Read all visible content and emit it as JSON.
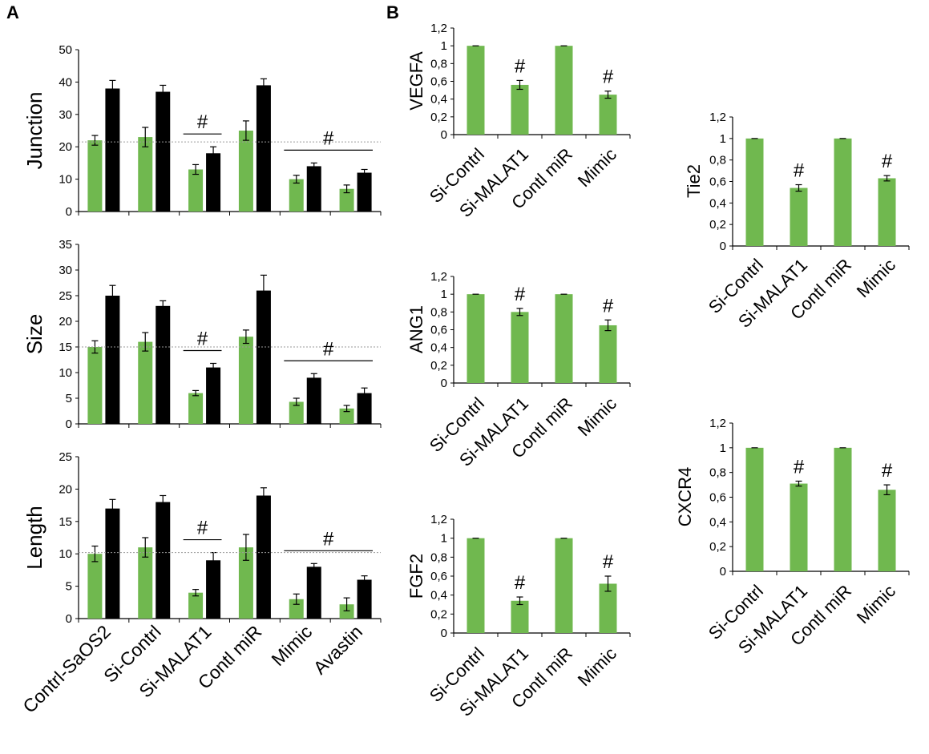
{
  "panels": {
    "a": "A",
    "b": "B"
  },
  "colors": {
    "green": "#70b84f",
    "black": "#000000",
    "refline": "#9a9a9a"
  },
  "chart_data": [
    {
      "id": "junction",
      "panel": "A",
      "type": "bar",
      "ylabel": "Junction",
      "ylim": [
        0,
        50
      ],
      "yticks": [
        0,
        10,
        20,
        30,
        40,
        50
      ],
      "categories": [
        "Contrl-SaOS2",
        "Si-Contrl",
        "Si-MALAT1",
        "Contl miR",
        "Mimic",
        "Avastin"
      ],
      "series": [
        {
          "name": "green",
          "values": [
            22,
            23,
            13,
            25,
            10,
            7
          ],
          "errors": [
            1.5,
            3,
            1.5,
            3,
            1.2,
            1.2
          ]
        },
        {
          "name": "black",
          "values": [
            38,
            37,
            18,
            39,
            14,
            12
          ],
          "errors": [
            2.5,
            2,
            2,
            2,
            1,
            1
          ]
        }
      ],
      "reference_line": 21.5,
      "annotations": [
        {
          "text": "#",
          "from": 2,
          "to": 2
        },
        {
          "text": "#",
          "from": 4,
          "to": 5
        }
      ]
    },
    {
      "id": "size",
      "panel": "A",
      "type": "bar",
      "ylabel": "Size",
      "ylim": [
        0,
        35
      ],
      "yticks": [
        0,
        5,
        10,
        15,
        20,
        25,
        30,
        35
      ],
      "categories": [
        "Contrl-SaOS2",
        "Si-Contrl",
        "Si-MALAT1",
        "Contl miR",
        "Mimic",
        "Avastin"
      ],
      "series": [
        {
          "name": "green",
          "values": [
            15,
            16,
            6,
            17,
            4.3,
            3
          ],
          "errors": [
            1.2,
            1.8,
            0.5,
            1.3,
            0.7,
            0.6
          ]
        },
        {
          "name": "black",
          "values": [
            25,
            23,
            11,
            26,
            9,
            6
          ],
          "errors": [
            2,
            1,
            0.8,
            3,
            0.8,
            1
          ]
        }
      ],
      "reference_line": 15,
      "annotations": [
        {
          "text": "#",
          "from": 2,
          "to": 2
        },
        {
          "text": "#",
          "from": 4,
          "to": 5
        }
      ]
    },
    {
      "id": "length",
      "panel": "A",
      "type": "bar",
      "ylabel": "Length",
      "ylim": [
        0,
        25
      ],
      "yticks": [
        0,
        5,
        10,
        15,
        20,
        25
      ],
      "categories": [
        "Contrl-SaOS2",
        "Si-Contrl",
        "Si-MALAT1",
        "Contl miR",
        "Mimic",
        "Avastin"
      ],
      "series": [
        {
          "name": "green",
          "values": [
            10,
            11,
            4,
            11,
            3,
            2.2
          ],
          "errors": [
            1.2,
            1.5,
            0.5,
            2,
            0.8,
            1
          ]
        },
        {
          "name": "black",
          "values": [
            17,
            18,
            9,
            19,
            8,
            6
          ],
          "errors": [
            1.4,
            1,
            1.2,
            1.2,
            0.5,
            0.6
          ]
        }
      ],
      "reference_line": 10.2,
      "annotations": [
        {
          "text": "#",
          "from": 2,
          "to": 2
        },
        {
          "text": "#",
          "from": 4,
          "to": 5
        }
      ]
    },
    {
      "id": "vegfa",
      "panel": "B",
      "type": "bar",
      "ylabel": "VEGFA",
      "ylim": [
        0,
        1.2
      ],
      "yticks": [
        "0",
        "0,2",
        "0,4",
        "0,6",
        "0,8",
        "1",
        "1,2"
      ],
      "categories": [
        "Si-Contrl",
        "Si-MALAT1",
        "Contl miR",
        "Mimic"
      ],
      "series": [
        {
          "name": "green",
          "values": [
            1,
            0.56,
            1,
            0.45
          ],
          "errors": [
            0,
            0.05,
            0,
            0.04
          ]
        }
      ],
      "annotations": [
        {
          "text": "#",
          "index": 1
        },
        {
          "text": "#",
          "index": 3
        }
      ]
    },
    {
      "id": "tie2",
      "panel": "B",
      "type": "bar",
      "ylabel": "Tie2",
      "ylim": [
        0,
        1.2
      ],
      "yticks": [
        "0",
        "0,2",
        "0,4",
        "0,6",
        "0,8",
        "1",
        "1,2"
      ],
      "categories": [
        "Si-Contrl",
        "Si-MALAT1",
        "Contl miR",
        "Mimic"
      ],
      "series": [
        {
          "name": "green",
          "values": [
            1,
            0.54,
            1,
            0.63
          ],
          "errors": [
            0,
            0.03,
            0,
            0.025
          ]
        }
      ],
      "annotations": [
        {
          "text": "#",
          "index": 1
        },
        {
          "text": "#",
          "index": 3
        }
      ]
    },
    {
      "id": "ang1",
      "panel": "B",
      "type": "bar",
      "ylabel": "ANG1",
      "ylim": [
        0,
        1.2
      ],
      "yticks": [
        "0",
        "0,2",
        "0,4",
        "0,6",
        "0,8",
        "1",
        "1,2"
      ],
      "categories": [
        "Si-Contrl",
        "Si-MALAT1",
        "Contl miR",
        "Mimic"
      ],
      "series": [
        {
          "name": "green",
          "values": [
            1,
            0.8,
            1,
            0.65
          ],
          "errors": [
            0,
            0.04,
            0,
            0.06
          ]
        }
      ],
      "annotations": [
        {
          "text": "#",
          "index": 1
        },
        {
          "text": "#",
          "index": 3
        }
      ]
    },
    {
      "id": "cxcr4",
      "panel": "B",
      "type": "bar",
      "ylabel": "CXCR4",
      "ylim": [
        0,
        1.2
      ],
      "yticks": [
        "0",
        "0,2",
        "0,4",
        "0,6",
        "0,8",
        "1",
        "1,2"
      ],
      "categories": [
        "Si-Contrl",
        "Si-MALAT1",
        "Contl miR",
        "Mimic"
      ],
      "series": [
        {
          "name": "green",
          "values": [
            1,
            0.71,
            1,
            0.66
          ],
          "errors": [
            0,
            0.02,
            0,
            0.04
          ]
        }
      ],
      "annotations": [
        {
          "text": "#",
          "index": 1
        },
        {
          "text": "#",
          "index": 3
        }
      ]
    },
    {
      "id": "fgf2",
      "panel": "B",
      "type": "bar",
      "ylabel": "FGF2",
      "ylim": [
        0,
        1.2
      ],
      "yticks": [
        "0",
        "0,2",
        "0,4",
        "0,6",
        "0,8",
        "1",
        "1,2"
      ],
      "categories": [
        "Si-Contrl",
        "Si-MALAT1",
        "Contl miR",
        "Mimic"
      ],
      "series": [
        {
          "name": "green",
          "values": [
            1,
            0.34,
            1,
            0.52
          ],
          "errors": [
            0,
            0.04,
            0,
            0.08
          ]
        }
      ],
      "annotations": [
        {
          "text": "#",
          "index": 1
        },
        {
          "text": "#",
          "index": 3
        }
      ]
    }
  ]
}
